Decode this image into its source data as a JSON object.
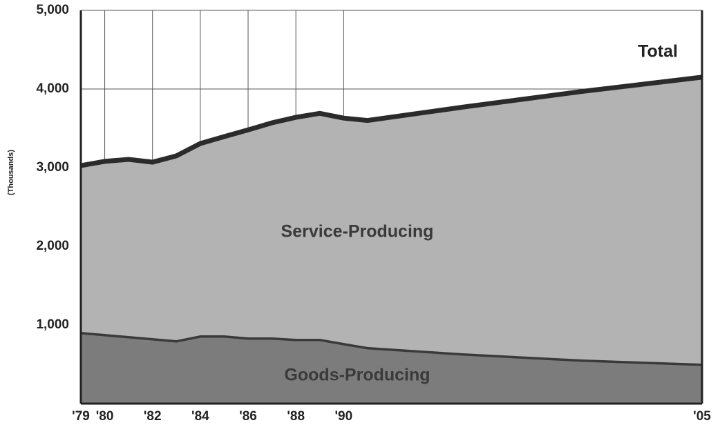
{
  "chart_data": {
    "type": "stacked_area",
    "ylabel": "(Thousands)",
    "x": [
      1979,
      1980,
      1981,
      1982,
      1983,
      1984,
      1985,
      1986,
      1987,
      1988,
      1989,
      1990,
      1991,
      1995,
      2000,
      2005
    ],
    "series": [
      {
        "name": "Goods-Producing",
        "color": "#7c7c7c",
        "values": [
          912,
          886,
          860,
          833,
          807,
          868,
          868,
          842,
          842,
          825,
          825,
          772,
          720,
          640,
          561,
          509
        ]
      },
      {
        "name": "Service-Producing",
        "color": "#b3b3b3",
        "values": [
          2114,
          2194,
          2245,
          2237,
          2343,
          2439,
          2527,
          2638,
          2728,
          2815,
          2865,
          2858,
          2880,
          3130,
          3409,
          3641
        ]
      }
    ],
    "total": {
      "name": "Total",
      "color": "#2b2b2b",
      "values": [
        3026,
        3080,
        3105,
        3070,
        3150,
        3307,
        3395,
        3480,
        3570,
        3640,
        3690,
        3630,
        3600,
        3770,
        3970,
        4150
      ]
    },
    "xlim": [
      1979,
      2005
    ],
    "xticks": [
      {
        "value": 1979,
        "label": "'79"
      },
      {
        "value": 1980,
        "label": "'80"
      },
      {
        "value": 1982,
        "label": "'82"
      },
      {
        "value": 1984,
        "label": "'84"
      },
      {
        "value": 1986,
        "label": "'86"
      },
      {
        "value": 1988,
        "label": "'88"
      },
      {
        "value": 1990,
        "label": "'90"
      },
      {
        "value": 2005,
        "label": "'05"
      }
    ],
    "ylim": [
      0,
      5000
    ],
    "yticks": [
      {
        "value": 1000,
        "label": "1,000"
      },
      {
        "value": 2000,
        "label": "2,000"
      },
      {
        "value": 3000,
        "label": "3,000"
      },
      {
        "value": 4000,
        "label": "4,000"
      },
      {
        "value": 5000,
        "label": "5,000"
      }
    ],
    "grid": true
  }
}
